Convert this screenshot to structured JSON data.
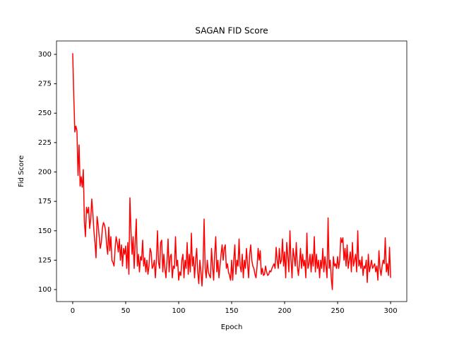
{
  "chart_data": {
    "type": "line",
    "title": "SAGAN FID Score",
    "x_label": "Epoch",
    "y_label": "Fid Score",
    "x": [
      0,
      1,
      2,
      3,
      4,
      5,
      6,
      7,
      8,
      9,
      10,
      11,
      12,
      13,
      14,
      15,
      16,
      17,
      18,
      19,
      20,
      21,
      22,
      23,
      24,
      25,
      26,
      27,
      28,
      29,
      30,
      31,
      32,
      33,
      34,
      35,
      36,
      37,
      38,
      39,
      40,
      41,
      42,
      43,
      44,
      45,
      46,
      47,
      48,
      49,
      50,
      51,
      52,
      53,
      54,
      55,
      56,
      57,
      58,
      59,
      60,
      61,
      62,
      63,
      64,
      65,
      66,
      67,
      68,
      69,
      70,
      71,
      72,
      73,
      74,
      75,
      76,
      77,
      78,
      79,
      80,
      81,
      82,
      83,
      84,
      85,
      86,
      87,
      88,
      89,
      90,
      91,
      92,
      93,
      94,
      95,
      96,
      97,
      98,
      99,
      100,
      101,
      102,
      103,
      104,
      105,
      106,
      107,
      108,
      109,
      110,
      111,
      112,
      113,
      114,
      115,
      116,
      117,
      118,
      119,
      120,
      121,
      122,
      123,
      124,
      125,
      126,
      127,
      128,
      129,
      130,
      131,
      132,
      133,
      134,
      135,
      136,
      137,
      138,
      139,
      140,
      141,
      142,
      143,
      144,
      145,
      146,
      147,
      148,
      149,
      150,
      151,
      152,
      153,
      154,
      155,
      156,
      157,
      158,
      159,
      160,
      161,
      162,
      163,
      164,
      165,
      166,
      167,
      168,
      169,
      170,
      171,
      172,
      173,
      174,
      175,
      176,
      177,
      178,
      179,
      180,
      181,
      182,
      183,
      184,
      185,
      186,
      187,
      188,
      189,
      190,
      191,
      192,
      193,
      194,
      195,
      196,
      197,
      198,
      199,
      200,
      201,
      202,
      203,
      204,
      205,
      206,
      207,
      208,
      209,
      210,
      211,
      212,
      213,
      214,
      215,
      216,
      217,
      218,
      219,
      220,
      221,
      222,
      223,
      224,
      225,
      226,
      227,
      228,
      229,
      230,
      231,
      232,
      233,
      234,
      235,
      236,
      237,
      238,
      239,
      240,
      241,
      242,
      243,
      244,
      245,
      246,
      247,
      248,
      249,
      250,
      251,
      252,
      253,
      254,
      255,
      256,
      257,
      258,
      259,
      260,
      261,
      262,
      263,
      264,
      265,
      266,
      267,
      268,
      269,
      270,
      271,
      272,
      273,
      274,
      275,
      276,
      277,
      278,
      279,
      280,
      281,
      282,
      283,
      284,
      285,
      286,
      287,
      288,
      289,
      290,
      291,
      292,
      293,
      294,
      295,
      296,
      297,
      298,
      299,
      300
    ],
    "series": [
      {
        "color": "#ff0000",
        "values": [
          301,
          265,
          234,
          239,
          235,
          197,
          223,
          188,
          196,
          187,
          202,
          158,
          145,
          170,
          165,
          170,
          152,
          160,
          177,
          165,
          150,
          140,
          127,
          162,
          155,
          145,
          135,
          140,
          152,
          157,
          155,
          150,
          138,
          130,
          153,
          133,
          145,
          125,
          123,
          120,
          135,
          145,
          140,
          132,
          143,
          125,
          138,
          120,
          135,
          130,
          137,
          118,
          140,
          113,
          178,
          150,
          130,
          145,
          118,
          140,
          160,
          120,
          130,
          115,
          128,
          125,
          142,
          120,
          127,
          115,
          125,
          113,
          120,
          135,
          132,
          118,
          120,
          125,
          110,
          125,
          150,
          123,
          118,
          140,
          142,
          115,
          130,
          118,
          110,
          125,
          143,
          115,
          128,
          130,
          110,
          120,
          118,
          145,
          120,
          125,
          108,
          115,
          112,
          125,
          130,
          110,
          125,
          118,
          140,
          113,
          130,
          115,
          148,
          120,
          128,
          110,
          125,
          135,
          115,
          105,
          125,
          115,
          103,
          120,
          160,
          118,
          110,
          125,
          115,
          112,
          110,
          135,
          120,
          108,
          130,
          145,
          115,
          125,
          110,
          120,
          130,
          138,
          125,
          135,
          138,
          118,
          122,
          115,
          112,
          108,
          125,
          108,
          125,
          138,
          113,
          125,
          120,
          143,
          120,
          115,
          130,
          110,
          125,
          118,
          135,
          122,
          110,
          130,
          138,
          125,
          120,
          118,
          113,
          110,
          120,
          135,
          125,
          133,
          113,
          118,
          112,
          113,
          120,
          115,
          112,
          113,
          116,
          115,
          118,
          120,
          122,
          118,
          136,
          125,
          118,
          135,
          122,
          125,
          143,
          120,
          132,
          110,
          140,
          128,
          115,
          150,
          125,
          110,
          135,
          128,
          120,
          140,
          120,
          112,
          122,
          135,
          118,
          130,
          120,
          125,
          110,
          148,
          118,
          122,
          130,
          115,
          130,
          120,
          145,
          115,
          130,
          118,
          125,
          110,
          125,
          118,
          135,
          115,
          128,
          120,
          110,
          161,
          118,
          125,
          110,
          100,
          128,
          120,
          122,
          118,
          128,
          118,
          125,
          144,
          140,
          144,
          125,
          135,
          120,
          138,
          118,
          125,
          132,
          115,
          140,
          120,
          125,
          130,
          115,
          150,
          120,
          125,
          118,
          128,
          112,
          120,
          118,
          125,
          106,
          130,
          115,
          120,
          125,
          118,
          120,
          122,
          115,
          120,
          108,
          133,
          118,
          112,
          120,
          125,
          122,
          144,
          115,
          122,
          112,
          136,
          110
        ]
      }
    ],
    "xlim": [
      -15.3,
      315.3
    ],
    "xticks": [
      0,
      50,
      100,
      150,
      200,
      250,
      300
    ],
    "ylim": [
      89.8,
      311.4
    ],
    "yticks": [
      100,
      125,
      150,
      175,
      200,
      225,
      250,
      275,
      300
    ],
    "grid": false
  }
}
